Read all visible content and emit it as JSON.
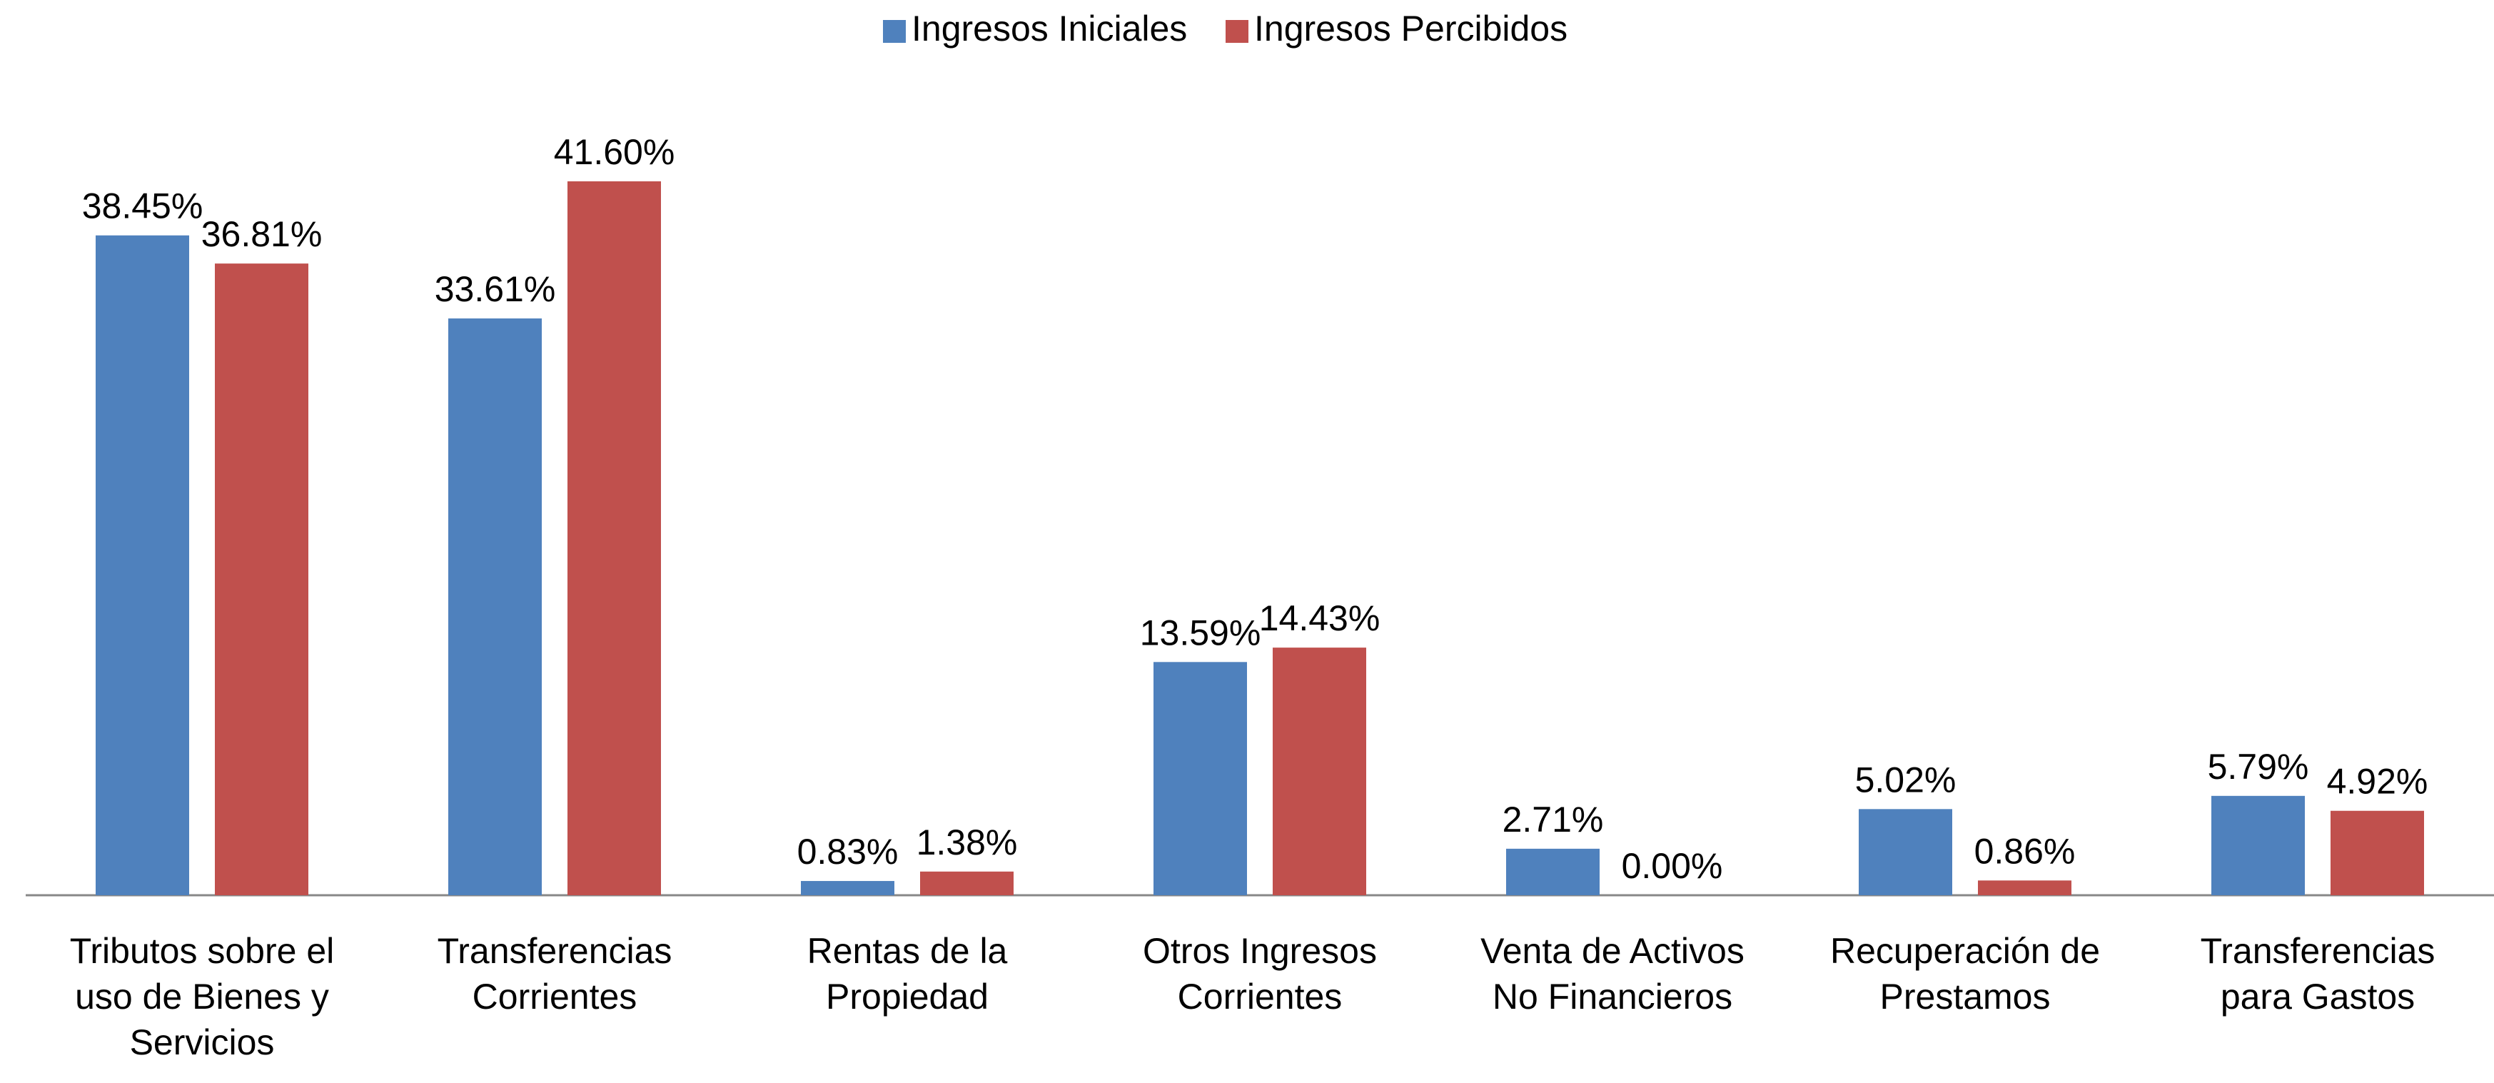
{
  "chart_data": {
    "type": "bar",
    "categories": [
      "Tributos sobre el uso de Bienes y Servicios",
      "Transferencias Corrientes",
      "Rentas de la Propiedad",
      "Otros Ingresos Corrientes",
      "Venta de Activos No Financieros",
      "Recuperación de Prestamos",
      "Transferencias para Gastos"
    ],
    "series": [
      {
        "name": "Ingresos Iniciales",
        "color": "#4f81bd",
        "values": [
          38.45,
          33.61,
          0.83,
          13.59,
          2.71,
          5.02,
          5.79
        ],
        "value_labels": [
          "38.45%",
          "33.61%",
          "0.83%",
          "13.59%",
          "2.71%",
          "5.02%",
          "5.79%"
        ]
      },
      {
        "name": "Ingresos Percibidos",
        "color": "#c0504d",
        "values": [
          36.81,
          41.6,
          1.38,
          14.43,
          0.0,
          0.86,
          4.92
        ],
        "value_labels": [
          "36.81%",
          "41.60%",
          "1.38%",
          "14.43%",
          "0.00%",
          "0.86%",
          "4.92%"
        ]
      }
    ],
    "legend": "top"
  }
}
